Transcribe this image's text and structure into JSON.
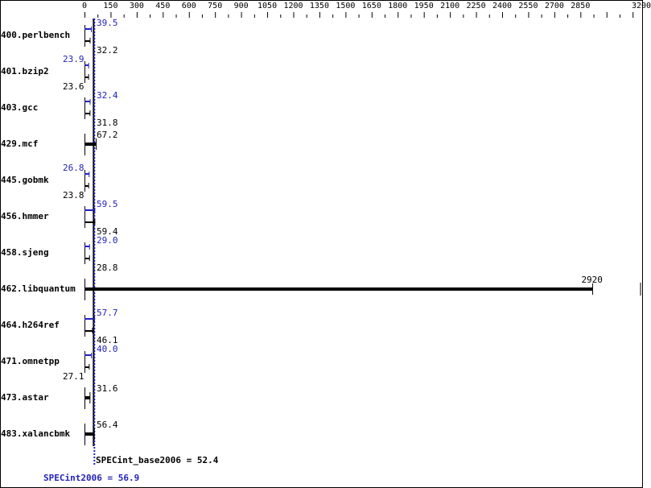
{
  "chart_data": {
    "type": "bar",
    "orientation": "horizontal",
    "xlim": [
      0,
      3200
    ],
    "x_ticks": [
      "0",
      "150",
      "300",
      "450",
      "600",
      "750",
      "900",
      "1050",
      "1200",
      "1350",
      "1500",
      "1650",
      "1800",
      "1950",
      "2100",
      "2250",
      "2400",
      "2550",
      "2700",
      "2850",
      "3200"
    ],
    "categories": [
      "400.perlbench",
      "401.bzip2",
      "403.gcc",
      "429.mcf",
      "445.gobmk",
      "456.hmmer",
      "458.sjeng",
      "462.libquantum",
      "464.h264ref",
      "471.omnetpp",
      "473.astar",
      "483.xalancbmk"
    ],
    "series": [
      {
        "name": "SPECint_base2006",
        "color": "#000000",
        "values": [
          32.2,
          23.6,
          31.8,
          67.2,
          23.8,
          59.4,
          28.8,
          2920,
          46.1,
          27.1,
          31.6,
          56.4
        ]
      },
      {
        "name": "SPECint2006",
        "color": "#2222bb",
        "values": [
          39.5,
          23.9,
          32.4,
          null,
          26.8,
          59.5,
          29.0,
          null,
          57.7,
          40.0,
          null,
          null
        ]
      }
    ],
    "base_labels": [
      "32.2",
      "23.6",
      "31.8",
      "67.2",
      "23.8",
      "59.4",
      "28.8",
      "2920",
      "46.1",
      "27.1",
      "31.6",
      "56.4"
    ],
    "peak_labels": [
      "39.5",
      "23.9",
      "32.4",
      "",
      "26.8",
      "59.5",
      "29.0",
      "",
      "57.7",
      "40.0",
      "",
      ""
    ],
    "reference_lines": {
      "base": 52.4,
      "peak": 56.9
    }
  },
  "footer": {
    "base_summary": "SPECint_base2006 = 52.4",
    "peak_summary": "SPECint2006 = 56.9"
  }
}
